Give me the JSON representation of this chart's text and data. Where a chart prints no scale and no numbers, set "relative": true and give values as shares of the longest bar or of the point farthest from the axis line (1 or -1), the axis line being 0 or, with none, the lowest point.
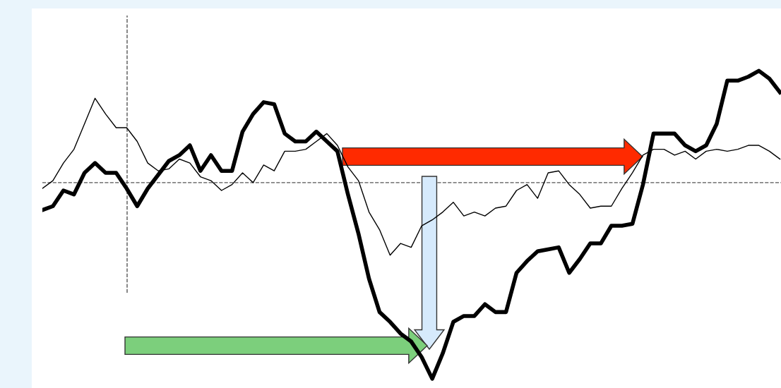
{
  "chart_data": {
    "type": "line",
    "relative": true,
    "grid": false,
    "legend": false,
    "marker": "none",
    "line_style": "solid",
    "categories": [
      null,
      null,
      null,
      null,
      null,
      null,
      null,
      null,
      null,
      null,
      null,
      null,
      null,
      null,
      null,
      null,
      null,
      null,
      null,
      null,
      null,
      null,
      null,
      null,
      null,
      null,
      null,
      null,
      null,
      null,
      null,
      null,
      null,
      null,
      null,
      null,
      null,
      null,
      null,
      null,
      null,
      null,
      null,
      null,
      null,
      null,
      null,
      null,
      null,
      null,
      null,
      null,
      null,
      null,
      null,
      null,
      null,
      null,
      null,
      null,
      null,
      null,
      null,
      null,
      null,
      null,
      null,
      null,
      null,
      null,
      null
    ],
    "series": [
      {
        "color": "#000000",
        "values": [
          -0.14,
          -0.12,
          -0.04,
          -0.06,
          0.05,
          0.1,
          0.05,
          0.05,
          -0.03,
          -0.12,
          -0.03,
          0.04,
          0.11,
          0.14,
          0.19,
          0.06,
          0.14,
          0.06,
          0.06,
          0.26,
          0.35,
          0.41,
          0.4,
          0.25,
          0.21,
          0.21,
          0.26,
          0.21,
          0.16,
          -0.06,
          -0.26,
          -0.49,
          -0.66,
          -0.71,
          -0.77,
          -0.81,
          -0.89,
          -1,
          -0.87,
          -0.71,
          -0.68,
          -0.68,
          -0.62,
          -0.66,
          -0.66,
          -0.46,
          -0.4,
          -0.35,
          -0.34,
          -0.33,
          -0.46,
          -0.39,
          -0.31,
          -0.31,
          -0.22,
          -0.22,
          -0.21,
          -0.01,
          0.25,
          0.25,
          0.25,
          0.19,
          0.16,
          0.19,
          0.3,
          0.52,
          0.52,
          0.54,
          0.57,
          0.53,
          0.46
        ]
      },
      {
        "color": "#000000",
        "values": [
          -0.03,
          0.01,
          0.1,
          0.17,
          0.3,
          0.43,
          0.35,
          0.28,
          0.28,
          0.21,
          0.1,
          0.06,
          0.07,
          0.12,
          0.1,
          0.03,
          0.01,
          -0.04,
          -0.01,
          0.05,
          0,
          0.09,
          0.06,
          0.16,
          0.16,
          0.17,
          0.21,
          0.25,
          0.19,
          0.08,
          0.01,
          -0.15,
          -0.24,
          -0.37,
          -0.31,
          -0.33,
          -0.22,
          -0.19,
          -0.15,
          -0.1,
          -0.17,
          -0.15,
          -0.17,
          -0.13,
          -0.12,
          -0.04,
          -0.01,
          -0.08,
          0.05,
          0.06,
          -0.01,
          -0.06,
          -0.13,
          -0.12,
          -0.12,
          -0.03,
          0.05,
          0.14,
          0.17,
          0.17,
          0.14,
          0.16,
          0.12,
          0.16,
          0.17,
          0.16,
          0.17,
          0.19,
          0.19,
          0.16,
          0.12
        ]
      }
    ],
    "ref_lines": [
      {
        "axis": "y",
        "value": 0,
        "color": "#555555",
        "line_style": "dashed"
      }
    ]
  }
}
